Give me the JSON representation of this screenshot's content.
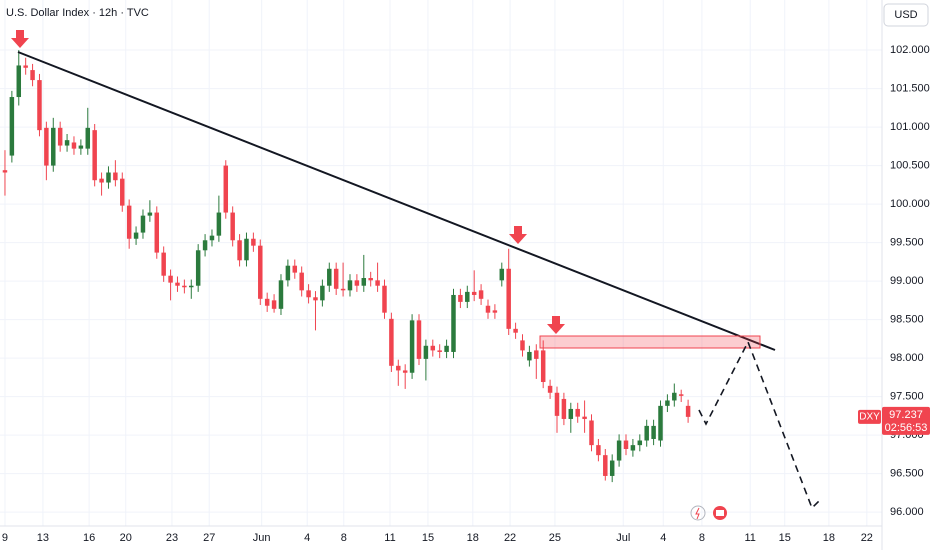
{
  "chart_data": {
    "type": "candlestick",
    "title": "U.S. Dollar Index · 12h · TVC",
    "currency": "USD",
    "symbol": "DXY",
    "last_price": {
      "value": 97.237,
      "label": "97.237"
    },
    "countdown": "02:56:53",
    "up_color": "#2b7a3d",
    "down_color": "#f0444f",
    "grid": true,
    "xlim": [
      -0.72,
      127.1
    ],
    "ylim": [
      95.82,
      102.65
    ],
    "yticks": [
      {
        "value": 96.0,
        "label": "96.000"
      },
      {
        "value": 96.5,
        "label": "96.500"
      },
      {
        "value": 97.0,
        "label": "97.000"
      },
      {
        "value": 97.5,
        "label": "97.500"
      },
      {
        "value": 98.0,
        "label": "98.000"
      },
      {
        "value": 98.5,
        "label": "98.500"
      },
      {
        "value": 99.0,
        "label": "99.000"
      },
      {
        "value": 99.5,
        "label": "99.500"
      },
      {
        "value": 100.0,
        "label": "100.000"
      },
      {
        "value": 100.5,
        "label": "100.500"
      },
      {
        "value": 101.0,
        "label": "101.000"
      },
      {
        "value": 101.5,
        "label": "101.500"
      },
      {
        "value": 102.0,
        "label": "102.000"
      }
    ],
    "xticks": [
      {
        "value": 0,
        "label": "9"
      },
      {
        "value": 5.5,
        "label": "13"
      },
      {
        "value": 12.2,
        "label": "16"
      },
      {
        "value": 17.5,
        "label": "20"
      },
      {
        "value": 24.2,
        "label": "23"
      },
      {
        "value": 29.6,
        "label": "27"
      },
      {
        "value": 37.2,
        "label": "Jun"
      },
      {
        "value": 43.8,
        "label": "4"
      },
      {
        "value": 49.1,
        "label": "8"
      },
      {
        "value": 55.8,
        "label": "11"
      },
      {
        "value": 61.3,
        "label": "15"
      },
      {
        "value": 67.8,
        "label": "18"
      },
      {
        "value": 73.2,
        "label": "22"
      },
      {
        "value": 79.7,
        "label": "25"
      },
      {
        "value": 89.6,
        "label": "Jul"
      },
      {
        "value": 95.4,
        "label": "4"
      },
      {
        "value": 101.0,
        "label": "8"
      },
      {
        "value": 108.0,
        "label": "11"
      },
      {
        "value": 113.0,
        "label": "15"
      },
      {
        "value": 119.4,
        "label": "18"
      },
      {
        "value": 124.9,
        "label": "22"
      }
    ],
    "candles": [
      [
        100.44,
        100.7,
        100.11,
        100.41
      ],
      [
        100.63,
        101.47,
        100.54,
        101.39
      ],
      [
        101.39,
        102.0,
        101.28,
        101.8
      ],
      [
        101.8,
        101.9,
        101.68,
        101.77
      ],
      [
        101.74,
        101.82,
        101.53,
        101.61
      ],
      [
        101.61,
        101.69,
        100.88,
        100.96
      ],
      [
        100.99,
        101.07,
        100.31,
        100.5
      ],
      [
        100.5,
        101.12,
        100.42,
        100.99
      ],
      [
        100.99,
        101.07,
        100.68,
        100.76
      ],
      [
        100.76,
        100.91,
        100.68,
        100.83
      ],
      [
        100.8,
        100.88,
        100.64,
        100.72
      ],
      [
        100.72,
        100.84,
        100.64,
        100.76
      ],
      [
        100.72,
        101.25,
        100.64,
        100.99
      ],
      [
        100.96,
        101.04,
        100.23,
        100.31
      ],
      [
        100.33,
        100.41,
        100.11,
        100.28
      ],
      [
        100.28,
        100.49,
        100.2,
        100.41
      ],
      [
        100.41,
        100.57,
        100.23,
        100.31
      ],
      [
        100.33,
        100.41,
        99.9,
        99.98
      ],
      [
        99.98,
        100.06,
        99.42,
        99.55
      ],
      [
        99.55,
        99.71,
        99.47,
        99.63
      ],
      [
        99.63,
        99.93,
        99.55,
        99.85
      ],
      [
        99.85,
        100.05,
        99.77,
        99.89
      ],
      [
        99.89,
        99.97,
        99.29,
        99.37
      ],
      [
        99.37,
        99.45,
        98.99,
        99.07
      ],
      [
        99.07,
        99.15,
        98.75,
        98.98
      ],
      [
        98.98,
        99.06,
        98.86,
        98.94
      ],
      [
        98.94,
        99.02,
        98.84,
        98.92
      ],
      [
        98.92,
        99.02,
        98.77,
        98.94
      ],
      [
        98.94,
        99.48,
        98.86,
        99.4
      ],
      [
        99.4,
        99.61,
        99.32,
        99.53
      ],
      [
        99.53,
        99.67,
        99.45,
        99.59
      ],
      [
        99.59,
        100.11,
        99.51,
        99.89
      ],
      [
        100.5,
        100.57,
        99.81,
        99.89
      ],
      [
        99.89,
        99.97,
        99.45,
        99.53
      ],
      [
        99.53,
        99.61,
        99.19,
        99.27
      ],
      [
        99.27,
        99.63,
        99.19,
        99.55
      ],
      [
        99.55,
        99.63,
        99.38,
        99.46
      ],
      [
        99.46,
        99.54,
        98.69,
        98.77
      ],
      [
        98.77,
        98.85,
        98.6,
        98.68
      ],
      [
        98.75,
        98.83,
        98.59,
        98.64
      ],
      [
        98.64,
        99.09,
        98.56,
        99.01
      ],
      [
        99.01,
        99.28,
        98.93,
        99.2
      ],
      [
        99.2,
        99.28,
        99.03,
        99.11
      ],
      [
        99.11,
        99.19,
        98.8,
        98.88
      ],
      [
        98.88,
        98.96,
        98.71,
        98.79
      ],
      [
        98.79,
        98.87,
        98.36,
        98.75
      ],
      [
        98.75,
        99.02,
        98.67,
        98.94
      ],
      [
        98.94,
        99.24,
        98.86,
        99.16
      ],
      [
        99.16,
        99.24,
        98.82,
        98.9
      ],
      [
        98.9,
        99.24,
        98.8,
        98.88
      ],
      [
        98.88,
        99.09,
        98.8,
        99.01
      ],
      [
        99.01,
        99.09,
        98.86,
        98.94
      ],
      [
        98.94,
        99.34,
        98.86,
        99.04
      ],
      [
        99.04,
        99.12,
        98.93,
        99.01
      ],
      [
        99.01,
        99.24,
        98.86,
        98.94
      ],
      [
        98.94,
        99.02,
        98.51,
        98.59
      ],
      [
        98.51,
        98.59,
        97.82,
        97.9
      ],
      [
        97.9,
        97.98,
        97.64,
        97.84
      ],
      [
        97.84,
        97.92,
        97.6,
        97.81
      ],
      [
        97.81,
        98.57,
        97.73,
        98.49
      ],
      [
        98.49,
        98.57,
        97.91,
        97.99
      ],
      [
        97.99,
        98.24,
        97.71,
        98.16
      ],
      [
        98.16,
        98.24,
        98.02,
        98.1
      ],
      [
        98.1,
        98.18,
        98.0,
        98.08
      ],
      [
        98.08,
        98.24,
        98.0,
        98.16
      ],
      [
        98.08,
        98.9,
        98.0,
        98.82
      ],
      [
        98.82,
        98.9,
        98.65,
        98.73
      ],
      [
        98.73,
        98.94,
        98.65,
        98.86
      ],
      [
        98.86,
        99.14,
        98.74,
        98.82
      ],
      [
        98.88,
        98.96,
        98.69,
        98.77
      ],
      [
        98.68,
        98.76,
        98.51,
        98.59
      ],
      [
        98.62,
        98.7,
        98.51,
        98.59
      ],
      [
        99.01,
        99.24,
        98.93,
        99.16
      ],
      [
        99.16,
        99.42,
        98.3,
        98.38
      ],
      [
        98.38,
        98.46,
        98.25,
        98.33
      ],
      [
        98.23,
        98.31,
        98.02,
        98.1
      ],
      [
        97.97,
        98.16,
        97.89,
        98.08
      ],
      [
        98.1,
        98.18,
        97.73,
        97.99
      ],
      [
        98.1,
        98.23,
        97.61,
        97.69
      ],
      [
        97.64,
        97.72,
        97.47,
        97.55
      ],
      [
        97.55,
        97.63,
        97.03,
        97.25
      ],
      [
        97.47,
        97.55,
        97.13,
        97.21
      ],
      [
        97.21,
        97.42,
        97.03,
        97.34
      ],
      [
        97.34,
        97.42,
        97.16,
        97.24
      ],
      [
        97.24,
        97.45,
        97.03,
        97.21
      ],
      [
        97.19,
        97.27,
        96.79,
        96.87
      ],
      [
        96.87,
        96.95,
        96.66,
        96.74
      ],
      [
        96.74,
        96.82,
        96.41,
        96.47
      ],
      [
        96.47,
        96.75,
        96.39,
        96.67
      ],
      [
        96.67,
        97.01,
        96.59,
        96.93
      ],
      [
        96.93,
        97.01,
        96.74,
        96.82
      ],
      [
        96.8,
        96.95,
        96.72,
        96.87
      ],
      [
        96.87,
        97.01,
        96.79,
        96.93
      ],
      [
        96.93,
        97.2,
        96.85,
        97.12
      ],
      [
        96.95,
        97.2,
        96.87,
        97.12
      ],
      [
        96.93,
        97.45,
        96.85,
        97.38
      ],
      [
        97.38,
        97.53,
        97.3,
        97.45
      ],
      [
        97.45,
        97.67,
        97.37,
        97.55
      ],
      [
        97.53,
        97.59,
        97.43,
        97.51
      ],
      [
        97.38,
        97.46,
        97.16,
        97.237
      ]
    ]
  }
}
